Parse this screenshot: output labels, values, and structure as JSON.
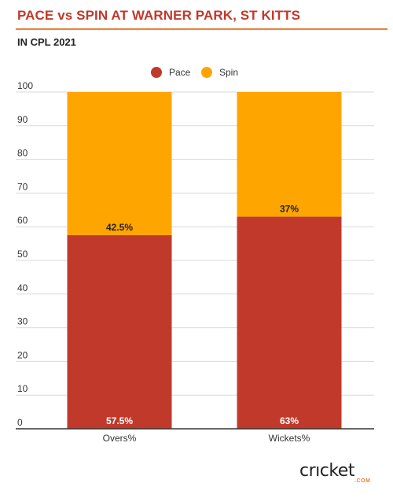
{
  "title": "PACE vs SPIN AT WARNER PARK, ST KITTS",
  "subtitle": "IN CPL 2021",
  "colors": {
    "title": "#c0392b",
    "accent": "#e8833a",
    "pace": "#c0392b",
    "spin": "#ffa500"
  },
  "logo": {
    "text_main": "crıcket",
    "text_sub": ".COM"
  },
  "chart_data": {
    "type": "bar",
    "stacked": true,
    "categories": [
      "Overs%",
      "Wickets%"
    ],
    "series": [
      {
        "name": "Pace",
        "color": "#c0392b",
        "values": [
          57.5,
          63
        ],
        "labels": [
          "57.5%",
          "63%"
        ]
      },
      {
        "name": "Spin",
        "color": "#ffa500",
        "values": [
          42.5,
          37
        ],
        "labels": [
          "42.5%",
          "37%"
        ]
      }
    ],
    "ylim": [
      0,
      100
    ],
    "yticks": [
      0,
      10,
      20,
      30,
      40,
      50,
      60,
      70,
      80,
      90,
      100
    ],
    "grid": true,
    "legend": "top-center"
  }
}
